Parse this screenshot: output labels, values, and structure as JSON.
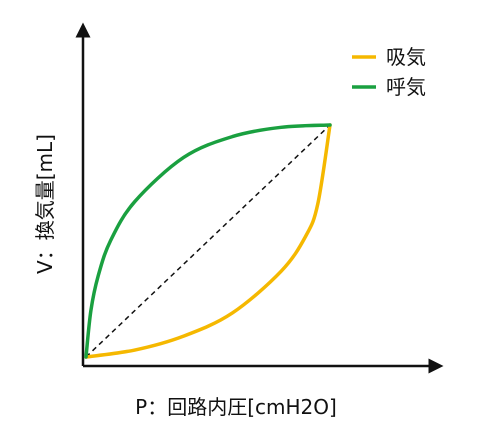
{
  "chart_data": {
    "type": "line",
    "title": "",
    "xlabel": "P：回路内圧[cmH2O]",
    "ylabel": "V：換気量[mL]",
    "xlim": [
      0,
      1
    ],
    "ylim": [
      0,
      1
    ],
    "grid": false,
    "legend_position": "top-right",
    "series": [
      {
        "name": "吸気",
        "color": "#F5B800",
        "x": [
          0.0,
          0.2,
          0.4,
          0.6,
          0.8,
          0.9,
          0.95,
          1.0
        ],
        "y": [
          0.0,
          0.03,
          0.09,
          0.19,
          0.37,
          0.52,
          0.66,
          1.0
        ]
      },
      {
        "name": "呼気",
        "color": "#1AA040",
        "x": [
          0.0,
          0.02,
          0.05,
          0.1,
          0.2,
          0.4,
          0.6,
          0.8,
          1.0
        ],
        "y": [
          0.0,
          0.2,
          0.35,
          0.5,
          0.67,
          0.86,
          0.95,
          0.99,
          1.0
        ]
      }
    ],
    "reference_line": {
      "style": "dashed",
      "color": "#111111",
      "x": [
        0.0,
        1.0
      ],
      "y": [
        0.0,
        1.0
      ]
    }
  }
}
